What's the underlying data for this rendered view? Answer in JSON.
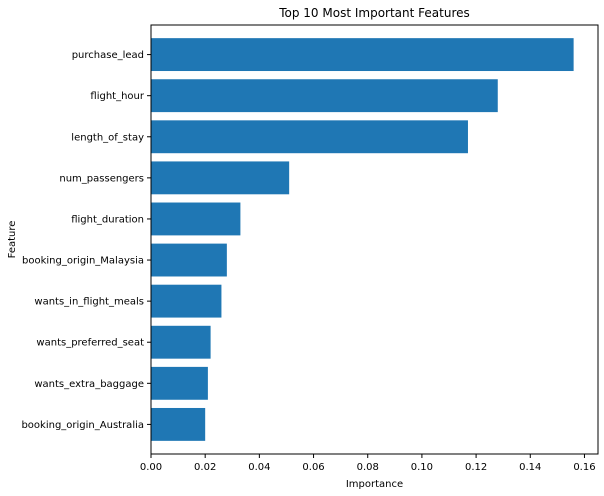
{
  "chart_data": {
    "type": "bar",
    "orientation": "horizontal",
    "title": "Top 10 Most Important Features",
    "xlabel": "Importance",
    "ylabel": "Feature",
    "categories": [
      "purchase_lead",
      "flight_hour",
      "length_of_stay",
      "num_passengers",
      "flight_duration",
      "booking_origin_Malaysia",
      "wants_in_flight_meals",
      "wants_preferred_seat",
      "wants_extra_baggage",
      "booking_origin_Australia"
    ],
    "values": [
      0.156,
      0.128,
      0.117,
      0.051,
      0.033,
      0.028,
      0.026,
      0.022,
      0.021,
      0.02
    ],
    "xlim": [
      0,
      0.165
    ],
    "xticks": [
      0.0,
      0.02,
      0.04,
      0.06,
      0.08,
      0.1,
      0.12,
      0.14,
      0.16
    ],
    "xtick_labels": [
      "0.00",
      "0.02",
      "0.04",
      "0.06",
      "0.08",
      "0.10",
      "0.12",
      "0.14",
      "0.16"
    ],
    "grid": false,
    "bar_color": "#1f77b4"
  }
}
